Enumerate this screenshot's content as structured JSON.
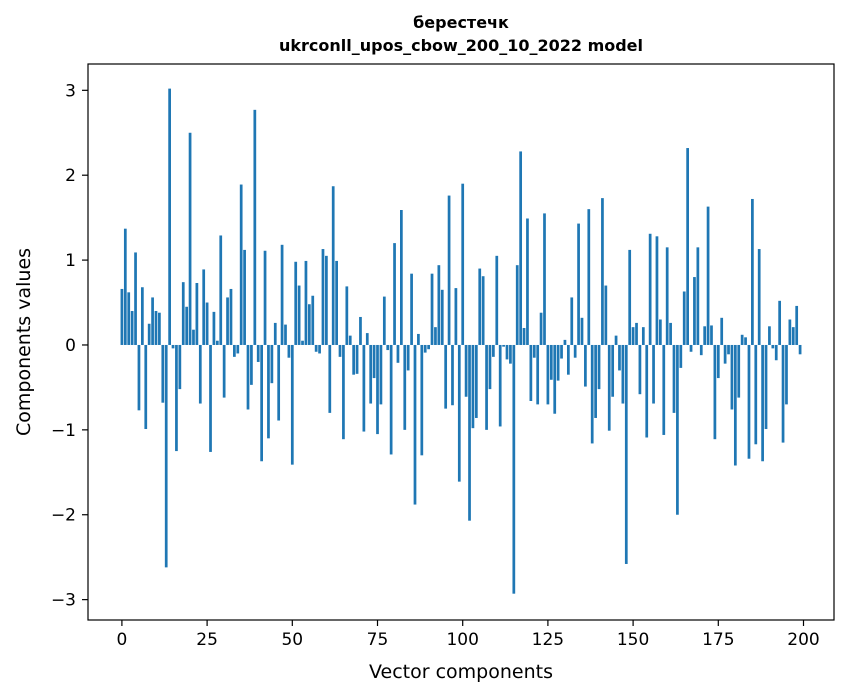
{
  "chart_data": {
    "type": "bar",
    "title": "берестечк",
    "subtitle": "ukrconll_upos_cbow_200_10_2022 model",
    "xlabel": "Vector components",
    "ylabel": "Components values",
    "xlim": [
      -9.95,
      208.95
    ],
    "ylim": [
      -3.24,
      3.31
    ],
    "xticks": [
      0,
      25,
      50,
      75,
      100,
      125,
      150,
      175,
      200
    ],
    "yticks": [
      -3,
      -2,
      -1,
      0,
      1,
      2,
      3
    ],
    "xtick_labels": [
      "0",
      "25",
      "50",
      "75",
      "100",
      "125",
      "150",
      "175",
      "200"
    ],
    "ytick_labels": [
      "−3",
      "−2",
      "−1",
      "0",
      "1",
      "2",
      "3"
    ],
    "bar_color": "#1f77b4",
    "grid": false,
    "legend": "none",
    "x": [
      0,
      1,
      2,
      3,
      4,
      5,
      6,
      7,
      8,
      9,
      10,
      11,
      12,
      13,
      14,
      15,
      16,
      17,
      18,
      19,
      20,
      21,
      22,
      23,
      24,
      25,
      26,
      27,
      28,
      29,
      30,
      31,
      32,
      33,
      34,
      35,
      36,
      37,
      38,
      39,
      40,
      41,
      42,
      43,
      44,
      45,
      46,
      47,
      48,
      49,
      50,
      51,
      52,
      53,
      54,
      55,
      56,
      57,
      58,
      59,
      60,
      61,
      62,
      63,
      64,
      65,
      66,
      67,
      68,
      69,
      70,
      71,
      72,
      73,
      74,
      75,
      76,
      77,
      78,
      79,
      80,
      81,
      82,
      83,
      84,
      85,
      86,
      87,
      88,
      89,
      90,
      91,
      92,
      93,
      94,
      95,
      96,
      97,
      98,
      99,
      100,
      101,
      102,
      103,
      104,
      105,
      106,
      107,
      108,
      109,
      110,
      111,
      112,
      113,
      114,
      115,
      116,
      117,
      118,
      119,
      120,
      121,
      122,
      123,
      124,
      125,
      126,
      127,
      128,
      129,
      130,
      131,
      132,
      133,
      134,
      135,
      136,
      137,
      138,
      139,
      140,
      141,
      142,
      143,
      144,
      145,
      146,
      147,
      148,
      149,
      150,
      151,
      152,
      153,
      154,
      155,
      156,
      157,
      158,
      159,
      160,
      161,
      162,
      163,
      164,
      165,
      166,
      167,
      168,
      169,
      170,
      171,
      172,
      173,
      174,
      175,
      176,
      177,
      178,
      179,
      180,
      181,
      182,
      183,
      184,
      185,
      186,
      187,
      188,
      189,
      190,
      191,
      192,
      193,
      194,
      195,
      196,
      197,
      198,
      199
    ],
    "values": [
      0.66,
      1.37,
      0.62,
      0.4,
      1.09,
      -0.77,
      0.68,
      -0.99,
      0.25,
      0.56,
      0.4,
      0.38,
      -0.68,
      -2.62,
      3.02,
      -0.04,
      -1.25,
      -0.52,
      0.74,
      0.45,
      2.5,
      0.18,
      0.73,
      -0.69,
      0.89,
      0.5,
      -1.26,
      0.39,
      0.05,
      1.29,
      -0.62,
      0.56,
      0.66,
      -0.14,
      -0.1,
      1.89,
      1.12,
      -0.76,
      -0.47,
      2.77,
      -0.2,
      -1.37,
      1.11,
      -1.1,
      -0.45,
      0.26,
      -0.89,
      1.18,
      0.24,
      -0.15,
      -1.41,
      0.98,
      0.7,
      0.05,
      0.99,
      0.48,
      0.58,
      -0.08,
      -0.1,
      1.13,
      1.05,
      -0.8,
      1.87,
      0.99,
      -0.14,
      -1.11,
      0.69,
      0.11,
      -0.35,
      -0.34,
      0.33,
      -1.02,
      0.14,
      -0.69,
      -0.39,
      -1.05,
      -0.7,
      0.57,
      -0.06,
      -1.29,
      1.2,
      -0.21,
      1.59,
      -1.0,
      -0.3,
      0.84,
      -1.88,
      0.13,
      -1.3,
      -0.09,
      -0.05,
      0.84,
      0.21,
      0.94,
      0.65,
      -0.75,
      1.76,
      -0.71,
      0.67,
      -1.61,
      1.9,
      -0.61,
      -2.07,
      -0.98,
      -0.86,
      0.9,
      0.81,
      -1.0,
      -0.52,
      -0.14,
      1.05,
      -0.96,
      -0.02,
      -0.17,
      -0.22,
      -2.93,
      0.94,
      2.28,
      0.2,
      1.49,
      -0.66,
      -0.15,
      -0.7,
      0.38,
      1.55,
      -0.7,
      -0.41,
      -0.81,
      -0.42,
      -0.16,
      0.06,
      -0.35,
      0.56,
      -0.15,
      1.43,
      0.32,
      -0.49,
      1.6,
      -1.16,
      -0.86,
      -0.52,
      1.73,
      0.7,
      -1.01,
      -0.61,
      0.11,
      -0.3,
      -0.69,
      -2.58,
      1.12,
      0.21,
      0.26,
      -0.58,
      0.21,
      -1.09,
      1.31,
      -0.69,
      1.28,
      0.3,
      -1.06,
      1.15,
      0.26,
      -0.8,
      -2.0,
      -0.27,
      0.63,
      2.32,
      -0.08,
      0.8,
      1.15,
      -0.12,
      0.22,
      1.63,
      0.23,
      -1.11,
      -0.39,
      0.32,
      -0.22,
      -0.11,
      -0.76,
      -1.42,
      -0.62,
      0.12,
      0.09,
      -1.34,
      1.72,
      -1.17,
      1.13,
      -1.37,
      -0.99,
      0.22,
      -0.04,
      -0.18,
      0.52,
      -1.15,
      -0.7,
      0.3,
      0.21,
      0.46,
      -0.11
    ]
  }
}
